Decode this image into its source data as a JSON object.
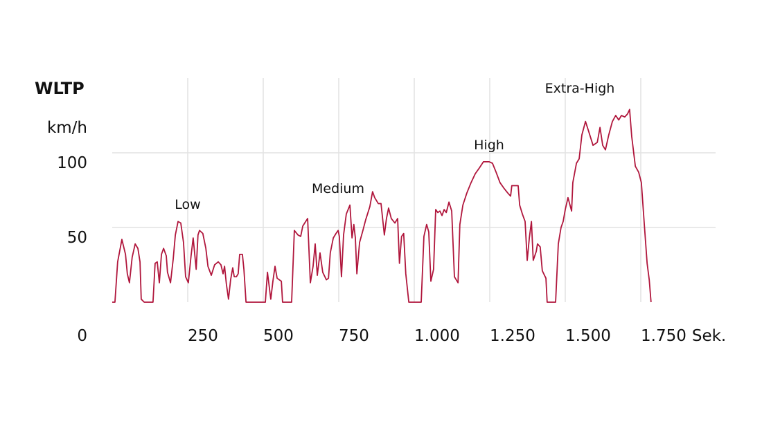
{
  "chart_data": {
    "type": "line",
    "title": "WLTP",
    "y_label": "km/h",
    "x_label": "Sek.",
    "annotations": [
      "Low",
      "Medium",
      "High",
      "Extra-High"
    ],
    "x": [
      0,
      9,
      18,
      32,
      44,
      50,
      57,
      66,
      76,
      85,
      92,
      96,
      106,
      135,
      142,
      149,
      156,
      163,
      170,
      179,
      183,
      193,
      202,
      209,
      218,
      227,
      236,
      243,
      252,
      261,
      268,
      278,
      284,
      289,
      300,
      310,
      317,
      328,
      339,
      351,
      360,
      367,
      372,
      378,
      385,
      392,
      399,
      404,
      411,
      417,
      422,
      431,
      436,
      443,
      507,
      514,
      525,
      532,
      539,
      546,
      560,
      564,
      594,
      603,
      615,
      624,
      631,
      647,
      656,
      665,
      672,
      679,
      688,
      697,
      709,
      716,
      722,
      732,
      741,
      748,
      752,
      759,
      766,
      775,
      787,
      794,
      800,
      805,
      810,
      819,
      830,
      839,
      853,
      862,
      869,
      881,
      890,
      901,
      908,
      915,
      924,
      936,
      945,
      951,
      958,
      965,
      972,
      982,
      1023,
      1032,
      1041,
      1048,
      1055,
      1064,
      1071,
      1078,
      1085,
      1092,
      1099,
      1106,
      1115,
      1124,
      1133,
      1145,
      1151,
      1161,
      1174,
      1188,
      1202,
      1216,
      1229,
      1248,
      1259,
      1271,
      1284,
      1298,
      1310,
      1319,
      1323,
      1344,
      1349,
      1358,
      1367,
      1374,
      1381,
      1388,
      1394,
      1404,
      1408,
      1417,
      1424,
      1436,
      1440,
      1468,
      1477,
      1486,
      1493,
      1500,
      1509,
      1521,
      1525,
      1537,
      1546,
      1555,
      1567,
      1578,
      1592,
      1606,
      1615,
      1624,
      1633,
      1644,
      1656,
      1667,
      1677,
      1686,
      1697,
      1706,
      1713,
      1720,
      1732,
      1743,
      1752,
      1761,
      1771,
      1778,
      1784
    ],
    "series": [
      {
        "color": "#b0163c",
        "values": [
          0,
          0,
          27,
          42,
          32,
          19,
          13,
          30,
          39,
          36,
          27,
          2,
          0,
          0,
          26,
          27,
          13,
          32,
          36,
          31,
          20,
          13,
          29,
          45,
          54,
          53,
          40,
          17,
          13,
          31,
          43,
          22,
          45,
          48,
          46,
          36,
          24,
          18,
          25,
          27,
          25,
          19,
          24,
          12,
          2,
          15,
          23,
          17,
          17,
          19,
          32,
          32,
          22,
          0,
          0,
          20,
          2,
          14,
          24,
          16,
          14,
          0,
          0,
          48,
          45,
          44,
          51,
          56,
          13,
          24,
          39,
          18,
          33,
          20,
          15,
          16,
          33,
          43,
          46,
          48,
          44,
          17,
          45,
          59,
          65,
          43,
          52,
          43,
          19,
          40,
          48,
          55,
          64,
          74,
          70,
          66,
          66,
          45,
          56,
          63,
          56,
          53,
          56,
          26,
          44,
          46,
          19,
          0,
          0,
          44,
          52,
          47,
          14,
          22,
          62,
          60,
          61,
          58,
          62,
          60,
          67,
          61,
          17,
          13,
          52,
          65,
          73,
          80,
          86,
          90,
          94,
          94,
          93,
          87,
          80,
          76,
          73,
          71,
          78,
          78,
          65,
          59,
          54,
          28,
          43,
          54,
          28,
          34,
          39,
          37,
          21,
          16,
          0,
          0,
          39,
          50,
          54,
          62,
          70,
          61,
          80,
          93,
          96,
          112,
          121,
          114,
          105,
          107,
          117,
          105,
          102,
          112,
          121,
          125,
          122,
          125,
          124,
          126,
          129,
          111,
          91,
          87,
          80,
          54,
          26,
          15,
          0
        ]
      }
    ],
    "xlim": [
      0,
      2000
    ],
    "ylim": [
      0,
      150
    ],
    "xticks": [
      250,
      500,
      750,
      {
        "value": 1000,
        "label": "1.000"
      },
      {
        "value": 1250,
        "label": "1.250"
      },
      {
        "value": 1500,
        "label": "1.500"
      },
      {
        "value": 1750,
        "label": "1.750"
      }
    ],
    "yticks": [
      0,
      50,
      100
    ],
    "grid": true
  }
}
